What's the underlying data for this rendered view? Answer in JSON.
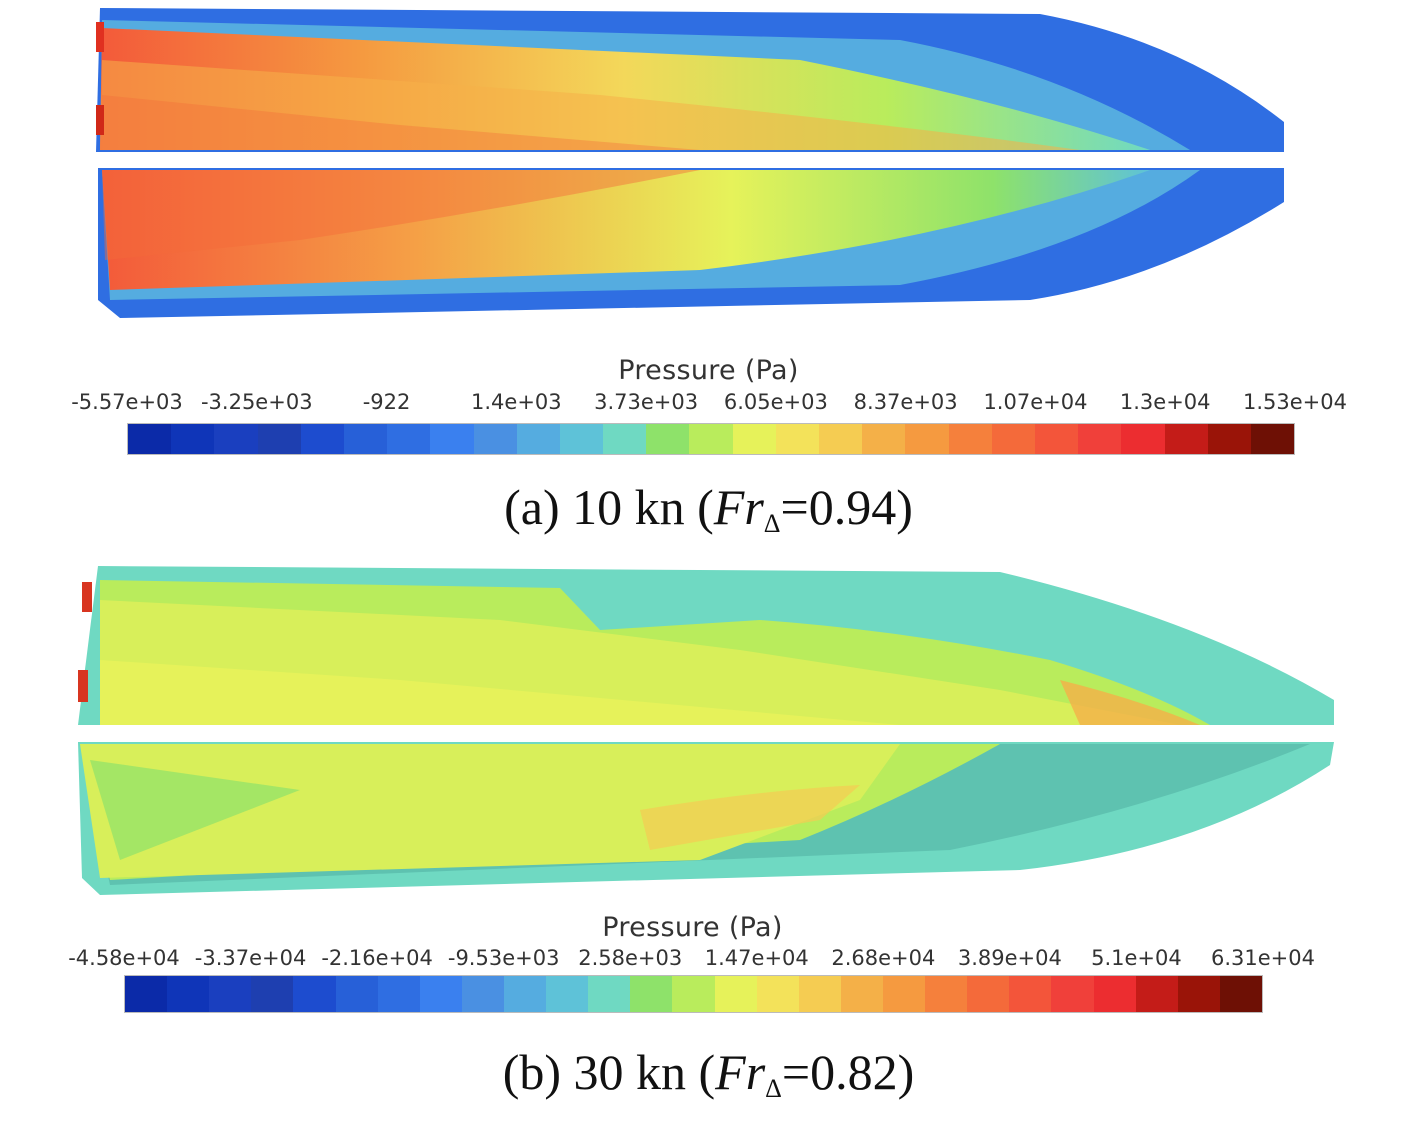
{
  "figure": {
    "panels": [
      {
        "id": "a",
        "colorbar": {
          "title": "Pressure (Pa)",
          "ticks": [
            "-5.57e+03",
            "-3.25e+03",
            "-922",
            "1.4e+03",
            "3.73e+03",
            "6.05e+03",
            "8.37e+03",
            "1.07e+04",
            "1.3e+04",
            "1.53e+04"
          ]
        },
        "caption": {
          "prefix": "(a) 10 kn (",
          "fr": "Fr",
          "sub": "Δ",
          "suffix": "=0.94)"
        }
      },
      {
        "id": "b",
        "colorbar": {
          "title": "Pressure (Pa)",
          "ticks": [
            "-4.58e+04",
            "-3.37e+04",
            "-2.16e+04",
            "-9.53e+03",
            "2.58e+03",
            "1.47e+04",
            "2.68e+04",
            "3.89e+04",
            "5.1e+04",
            "6.31e+04"
          ]
        },
        "caption": {
          "prefix": "(b) 30 kn (",
          "fr": "Fr",
          "sub": "Δ",
          "suffix": "=0.82)"
        }
      }
    ],
    "colormap": [
      "#0b2aa8",
      "#0f35b8",
      "#1a3fbf",
      "#1e3fb0",
      "#1d4ccf",
      "#2760d8",
      "#2f6ee2",
      "#3a80ef",
      "#4a90e2",
      "#55ace0",
      "#5ec2d8",
      "#6fd9c2",
      "#8ee26a",
      "#b9ec5c",
      "#e6f25a",
      "#f3e25a",
      "#f5cc52",
      "#f4b048",
      "#f59a40",
      "#f5803c",
      "#f46a3a",
      "#f3553a",
      "#f0403a",
      "#ec2d30",
      "#c41c18",
      "#9a1408",
      "#6e1005"
    ]
  }
}
